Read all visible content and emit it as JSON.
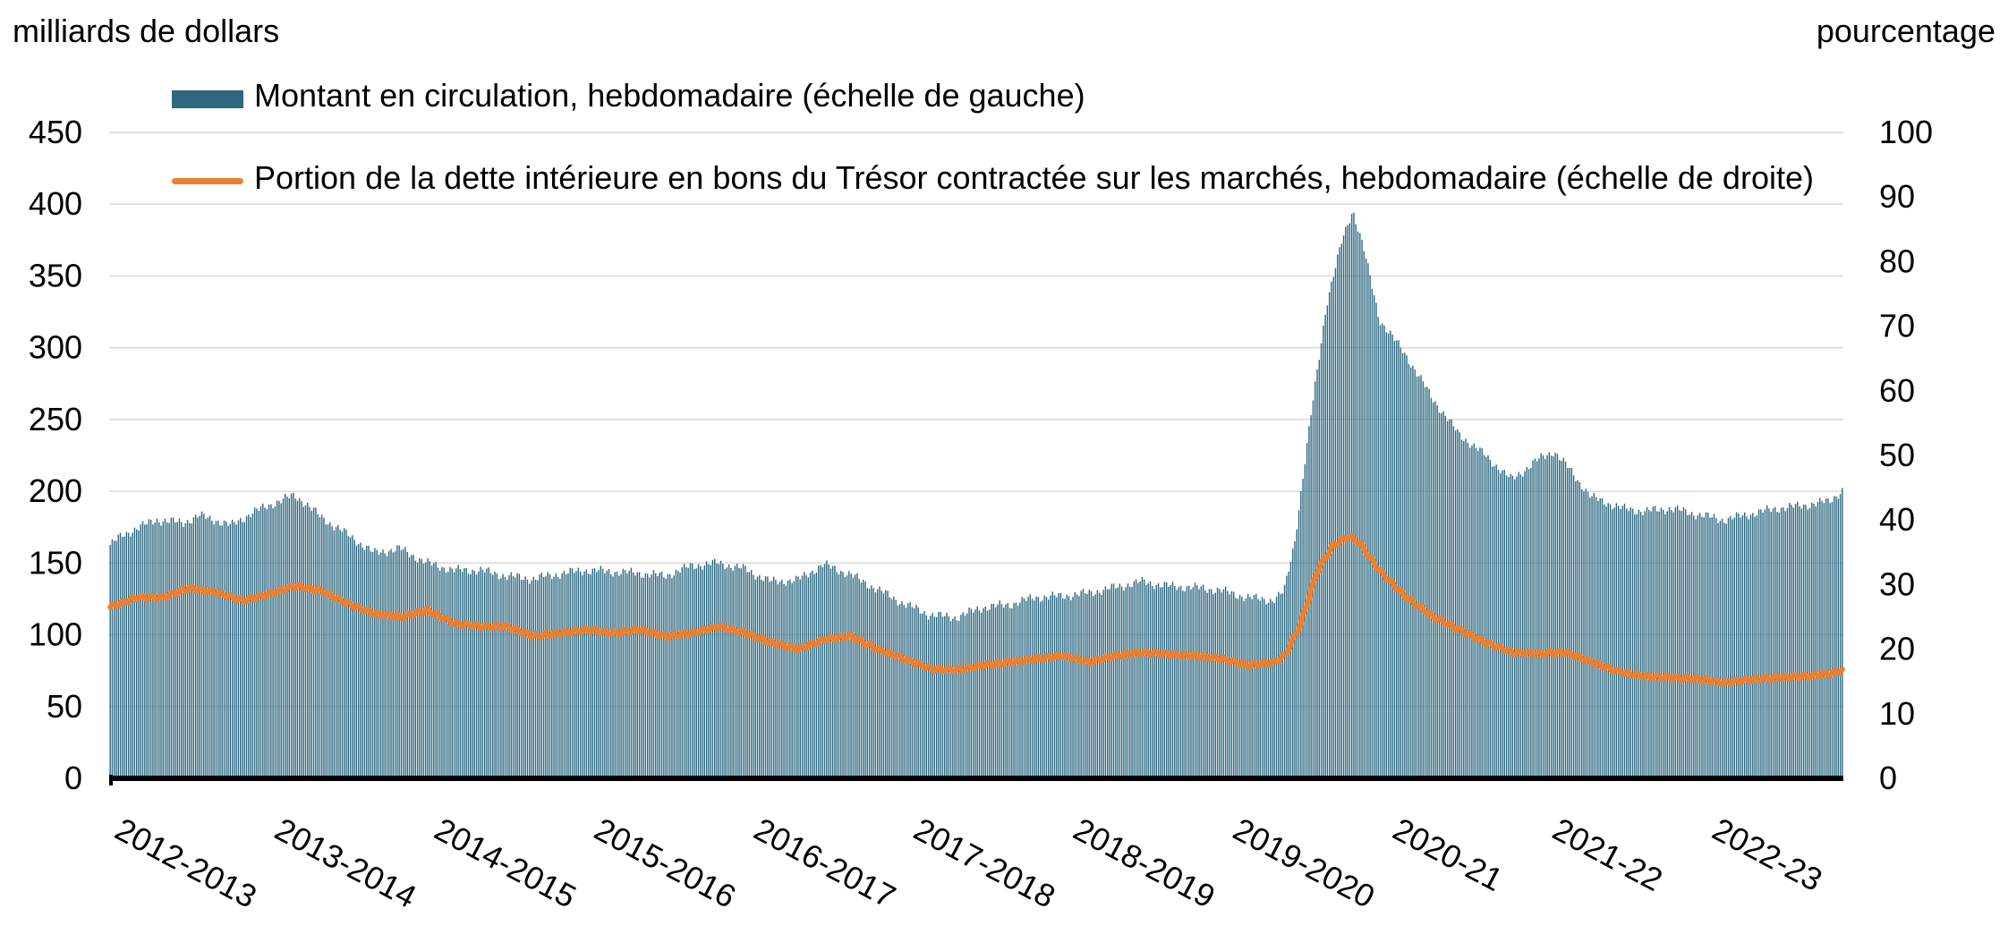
{
  "chart_data": {
    "type": "bar+line",
    "left_axis_label": "milliards de dollars",
    "right_axis_label": "pourcentage",
    "left_ylim": [
      0,
      450
    ],
    "left_ticks": [
      "0",
      "50",
      "100",
      "150",
      "200",
      "250",
      "300",
      "350",
      "400",
      "450"
    ],
    "right_ylim": [
      0,
      100
    ],
    "right_ticks": [
      "0",
      "10",
      "20",
      "30",
      "40",
      "50",
      "60",
      "70",
      "80",
      "90",
      "100"
    ],
    "x_tick_labels": [
      "2012-2013",
      "2013-2014",
      "2014-2015",
      "2015-2016",
      "2016-2017",
      "2017-2018",
      "2018-2019",
      "2019-2020",
      "2020-21",
      "2021-22",
      "2022-23"
    ],
    "grid": "horizontal",
    "colors": {
      "bars": "#2d6880",
      "line": "#f07f2c",
      "grid": "#d9d9d9",
      "axis": "#000000"
    },
    "series": [
      {
        "name": "Montant en circulation, hebdomadaire (échelle de gauche)",
        "axis": "left",
        "kind": "bar",
        "frequency": "weekly",
        "anchors": [
          [
            0,
            162
          ],
          [
            0.1,
            168
          ],
          [
            0.25,
            174
          ],
          [
            0.45,
            180
          ],
          [
            0.7,
            178
          ],
          [
            0.85,
            183
          ],
          [
            1.0,
            180
          ],
          [
            1.15,
            176
          ],
          [
            1.35,
            185
          ],
          [
            1.6,
            193
          ],
          [
            1.75,
            197
          ],
          [
            1.85,
            192
          ],
          [
            2.0,
            182
          ],
          [
            2.25,
            170
          ],
          [
            2.5,
            157
          ],
          [
            2.75,
            160
          ],
          [
            3.0,
            150
          ],
          [
            3.25,
            145
          ],
          [
            3.5,
            145
          ],
          [
            3.75,
            141
          ],
          [
            4.0,
            139
          ],
          [
            4.3,
            143
          ],
          [
            4.5,
            145
          ],
          [
            4.75,
            144
          ],
          [
            5.0,
            143
          ],
          [
            5.25,
            141
          ],
          [
            5.5,
            148
          ],
          [
            5.75,
            150
          ],
          [
            6.0,
            146
          ],
          [
            6.25,
            137
          ],
          [
            6.5,
            138
          ],
          [
            6.75,
            149
          ],
          [
            7.0,
            142
          ],
          [
            7.25,
            132
          ],
          [
            7.5,
            122
          ],
          [
            7.75,
            114
          ],
          [
            8.0,
            112
          ],
          [
            8.25,
            119
          ],
          [
            8.5,
            121
          ],
          [
            8.75,
            126
          ],
          [
            9.0,
            127
          ],
          [
            9.25,
            129
          ],
          [
            9.5,
            133
          ],
          [
            9.75,
            137
          ],
          [
            10.0,
            134
          ],
          [
            10.25,
            133
          ],
          [
            10.5,
            131
          ],
          [
            10.75,
            126
          ],
          [
            11.0,
            124
          ],
          [
            11.1,
            130
          ],
          [
            11.2,
            165
          ],
          [
            11.35,
            250
          ],
          [
            11.5,
            330
          ],
          [
            11.65,
            375
          ],
          [
            11.75,
            396
          ],
          [
            11.85,
            370
          ],
          [
            12.0,
            320
          ],
          [
            12.25,
            295
          ],
          [
            12.5,
            265
          ],
          [
            12.75,
            240
          ],
          [
            13.0,
            225
          ],
          [
            13.25,
            208
          ],
          [
            13.5,
            222
          ],
          [
            13.65,
            228
          ],
          [
            13.8,
            215
          ],
          [
            14.0,
            196
          ],
          [
            14.3,
            188
          ],
          [
            14.5,
            186
          ],
          [
            14.75,
            188
          ],
          [
            15.0,
            184
          ],
          [
            15.25,
            180
          ],
          [
            15.5,
            184
          ],
          [
            15.75,
            188
          ],
          [
            16.0,
            190
          ],
          [
            16.25,
            193
          ],
          [
            16.38,
            201
          ]
        ]
      },
      {
        "name": "Portion de la dette intérieure en bons du Trésor contractée sur les marchés, hebdomadaire (échelle de droite)",
        "axis": "right",
        "kind": "line",
        "frequency": "weekly",
        "anchors": [
          [
            0,
            26.5
          ],
          [
            0.25,
            28
          ],
          [
            0.5,
            28
          ],
          [
            0.75,
            29.5
          ],
          [
            1.0,
            28.8
          ],
          [
            1.25,
            27.5
          ],
          [
            1.5,
            28.5
          ],
          [
            1.75,
            29.8
          ],
          [
            2.0,
            29
          ],
          [
            2.25,
            27
          ],
          [
            2.5,
            25.5
          ],
          [
            2.75,
            25
          ],
          [
            3.0,
            26
          ],
          [
            3.25,
            24
          ],
          [
            3.5,
            23.5
          ],
          [
            3.75,
            23.5
          ],
          [
            4.0,
            22
          ],
          [
            4.25,
            22.5
          ],
          [
            4.5,
            23
          ],
          [
            4.75,
            22.5
          ],
          [
            5.0,
            23
          ],
          [
            5.25,
            22
          ],
          [
            5.5,
            22.5
          ],
          [
            5.75,
            23.5
          ],
          [
            6.0,
            22.5
          ],
          [
            6.25,
            21
          ],
          [
            6.5,
            20
          ],
          [
            6.75,
            21.5
          ],
          [
            7.0,
            22
          ],
          [
            7.25,
            20
          ],
          [
            7.5,
            18.5
          ],
          [
            7.75,
            17
          ],
          [
            8.0,
            16.8
          ],
          [
            8.25,
            17.5
          ],
          [
            8.5,
            18
          ],
          [
            8.75,
            18.5
          ],
          [
            9.0,
            19
          ],
          [
            9.25,
            18
          ],
          [
            9.5,
            19
          ],
          [
            9.75,
            19.5
          ],
          [
            10.0,
            19.2
          ],
          [
            10.25,
            19
          ],
          [
            10.5,
            18.5
          ],
          [
            10.75,
            17.5
          ],
          [
            11.0,
            18
          ],
          [
            11.1,
            19
          ],
          [
            11.25,
            24
          ],
          [
            11.4,
            32
          ],
          [
            11.55,
            36
          ],
          [
            11.7,
            37.5
          ],
          [
            11.8,
            36.5
          ],
          [
            12.0,
            32
          ],
          [
            12.25,
            28
          ],
          [
            12.5,
            25
          ],
          [
            12.75,
            23
          ],
          [
            13.0,
            21
          ],
          [
            13.25,
            19.5
          ],
          [
            13.5,
            19.3
          ],
          [
            13.75,
            19.5
          ],
          [
            14.0,
            18
          ],
          [
            14.25,
            16.5
          ],
          [
            14.5,
            15.8
          ],
          [
            14.75,
            15.6
          ],
          [
            15.0,
            15.4
          ],
          [
            15.25,
            14.8
          ],
          [
            15.5,
            15.3
          ],
          [
            15.75,
            15.6
          ],
          [
            16.0,
            15.8
          ],
          [
            16.25,
            16.2
          ],
          [
            16.38,
            16.8
          ]
        ]
      }
    ],
    "legend": {
      "bars_label": "Montant en circulation, hebdomadaire (échelle de gauche)",
      "line_label": "Portion de la dette intérieure en bons du Trésor contractée sur les marchés, hebdomadaire (échelle de droite)"
    }
  }
}
